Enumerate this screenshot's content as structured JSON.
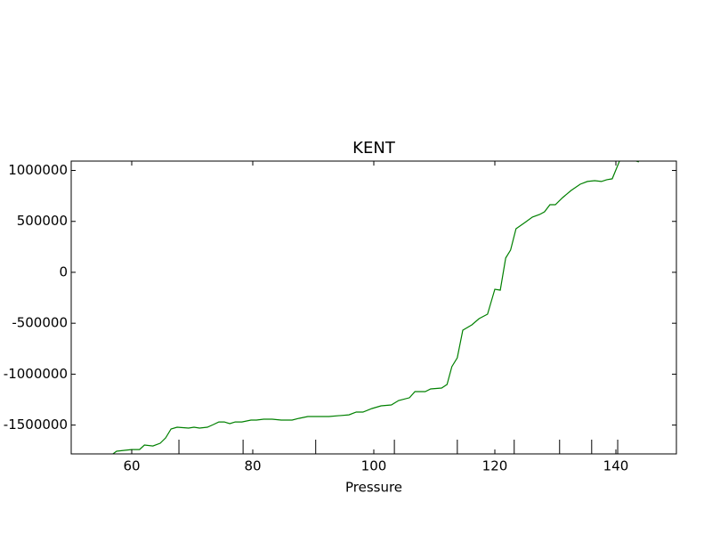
{
  "chart_data": {
    "type": "line",
    "title": "KENT",
    "x_label": "Pressure",
    "xlim": [
      50,
      150
    ],
    "xticks": [
      60,
      80,
      100,
      120,
      140
    ],
    "ylim": [
      -1783000,
      1092000
    ],
    "yticks": [
      -1500000,
      -1000000,
      -500000,
      0,
      500000,
      1000000
    ],
    "event_x": [
      67.8,
      78.4,
      90.4,
      103.4,
      113.8,
      123.2,
      130.7,
      136.0,
      140.3
    ],
    "series": [
      {
        "color": "#008000",
        "x": [
          56.9,
          57.5,
          58.8,
          60,
          61.3,
          62.1,
          63.5,
          64.7,
          65.6,
          66.5,
          67.5,
          69.4,
          70.3,
          71.2,
          72.5,
          73.5,
          74.4,
          75.3,
          76.2,
          77.1,
          78.2,
          79.7,
          80.6,
          81.8,
          83.2,
          84.7,
          86.5,
          87.6,
          89.1,
          92.6,
          95.9,
          97.1,
          98.2,
          99.7,
          101.2,
          102.9,
          104.1,
          105.9,
          106.8,
          108.5,
          109.4,
          111.2,
          112.1,
          112.9,
          113.8,
          114.7,
          116.2,
          117.4,
          118.8,
          120.0,
          120.9,
          121.8,
          122.6,
          123.5,
          125,
          126.2,
          127.4,
          128.2,
          129.1,
          130,
          131.2,
          132.6,
          134.1,
          135.3,
          136.5,
          137.6,
          138.5,
          139.4,
          140.6,
          141.2,
          142.9,
          143.8
        ],
        "values": [
          -1783000,
          -1757000,
          -1748000,
          -1740000,
          -1740000,
          -1696000,
          -1705000,
          -1678000,
          -1626000,
          -1538000,
          -1521000,
          -1530000,
          -1521000,
          -1530000,
          -1521000,
          -1495000,
          -1469000,
          -1469000,
          -1486000,
          -1469000,
          -1469000,
          -1451000,
          -1451000,
          -1442000,
          -1442000,
          -1451000,
          -1451000,
          -1434000,
          -1416000,
          -1416000,
          -1399000,
          -1372000,
          -1372000,
          -1337000,
          -1311000,
          -1302000,
          -1259000,
          -1232000,
          -1171000,
          -1171000,
          -1145000,
          -1136000,
          -1101000,
          -927000,
          -839000,
          -568000,
          -516000,
          -455000,
          -411000,
          -166000,
          -175000,
          140000,
          219000,
          428000,
          490000,
          542000,
          568000,
          594000,
          664000,
          664000,
          734000,
          804000,
          865000,
          892000,
          900000,
          892000,
          909000,
          918000,
          1093000,
          1110000,
          1101000,
          1084000
        ]
      }
    ]
  }
}
